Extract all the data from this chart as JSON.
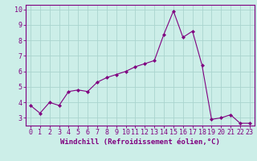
{
  "x": [
    0,
    1,
    2,
    3,
    4,
    5,
    6,
    7,
    8,
    9,
    10,
    11,
    12,
    13,
    14,
    15,
    16,
    17,
    18,
    19,
    20,
    21,
    22,
    23
  ],
  "y": [
    3.8,
    3.3,
    4.0,
    3.8,
    4.7,
    4.8,
    4.7,
    5.3,
    5.6,
    5.8,
    6.0,
    6.3,
    6.5,
    6.7,
    8.4,
    9.9,
    8.2,
    8.6,
    6.4,
    2.9,
    3.0,
    3.2,
    2.65,
    2.65
  ],
  "line_color": "#800080",
  "marker": "D",
  "marker_size": 2.0,
  "bg_color": "#cceee8",
  "grid_color": "#aad4ce",
  "xlabel": "Windchill (Refroidissement éolien,°C)",
  "xlim": [
    -0.5,
    23.5
  ],
  "ylim": [
    2.5,
    10.3
  ],
  "yticks": [
    3,
    4,
    5,
    6,
    7,
    8,
    9,
    10
  ],
  "xticks": [
    0,
    1,
    2,
    3,
    4,
    5,
    6,
    7,
    8,
    9,
    10,
    11,
    12,
    13,
    14,
    15,
    16,
    17,
    18,
    19,
    20,
    21,
    22,
    23
  ],
  "axis_color": "#800080",
  "tick_color": "#800080",
  "label_color": "#800080",
  "label_fontsize": 6.5,
  "tick_fontsize": 6.0
}
